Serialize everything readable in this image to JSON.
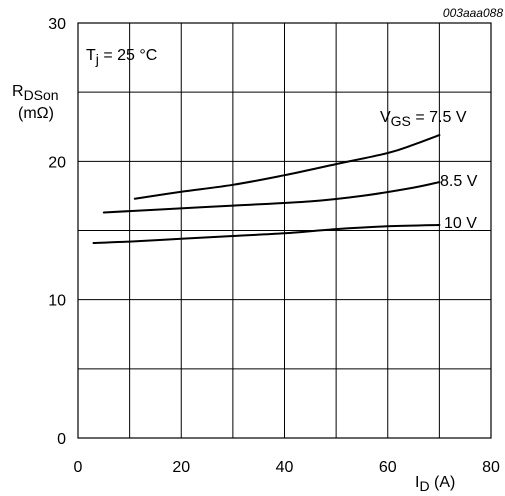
{
  "chart_data": {
    "type": "line",
    "figure_id": "003aaa088",
    "xlabel": {
      "main": "I",
      "sub": "D",
      "unit": " (A)"
    },
    "ylabel": {
      "main": "R",
      "sub": "DSon",
      "unit": "(mΩ)"
    },
    "condition": {
      "main": "T",
      "sub": "j",
      "rest": " = 25 °C"
    },
    "xlim": [
      0,
      80
    ],
    "ylim": [
      0,
      30
    ],
    "x_ticks": [
      0,
      20,
      40,
      60,
      80
    ],
    "y_ticks": [
      0,
      10,
      20,
      30
    ],
    "x_grid": [
      10,
      20,
      30,
      40,
      50,
      60,
      70
    ],
    "y_grid": [
      5,
      10,
      15,
      20,
      25
    ],
    "grid": true,
    "series": [
      {
        "name": "V",
        "name_sub": "GS",
        "name_rest": " = 7.5 V",
        "x": [
          11,
          20,
          30,
          40,
          50,
          60,
          65,
          70
        ],
        "y": [
          17.3,
          17.8,
          18.3,
          19.0,
          19.8,
          20.6,
          21.2,
          21.9
        ]
      },
      {
        "name": "8.5 V",
        "x": [
          5,
          15,
          30,
          45,
          55,
          65,
          70
        ],
        "y": [
          16.3,
          16.5,
          16.8,
          17.1,
          17.5,
          18.1,
          18.5
        ]
      },
      {
        "name": "10 V",
        "x": [
          3,
          10,
          20,
          30,
          40,
          50,
          60,
          70
        ],
        "y": [
          14.1,
          14.2,
          14.4,
          14.6,
          14.8,
          15.1,
          15.3,
          15.4
        ]
      }
    ]
  }
}
